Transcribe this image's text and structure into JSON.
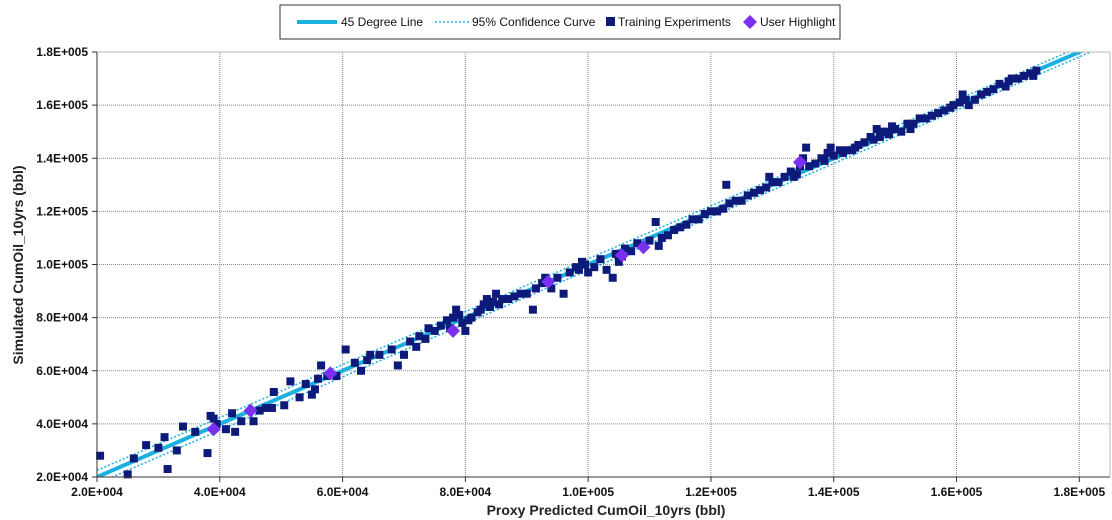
{
  "chart_data": {
    "type": "scatter",
    "xlabel": "Proxy Predicted CumOil_10yrs (bbl)",
    "ylabel": "Simulated CumOil_10yrs (bbl)",
    "xlim": [
      20000,
      185000
    ],
    "ylim": [
      20000,
      180000
    ],
    "x_ticks": [
      20000,
      40000,
      60000,
      80000,
      100000,
      120000,
      140000,
      160000,
      180000
    ],
    "x_tick_labels": [
      "2.0E+004",
      "4.0E+004",
      "6.0E+004",
      "8.0E+004",
      "1.0E+005",
      "1.2E+005",
      "1.4E+005",
      "1.6E+005",
      "1.8E+005"
    ],
    "y_ticks": [
      20000,
      40000,
      60000,
      80000,
      100000,
      120000,
      140000,
      160000,
      180000
    ],
    "y_tick_labels": [
      "2.0E+004",
      "4.0E+004",
      "6.0E+004",
      "8.0E+004",
      "1.0E+005",
      "1.2E+005",
      "1.4E+005",
      "1.6E+005",
      "1.8E+005"
    ],
    "grid": true,
    "legend_position": "top-center",
    "colors": {
      "line": "#1ab0e0",
      "confidence": "#1ab0e0",
      "training": "#0e1a7a",
      "highlight": "#7b2ff0"
    },
    "series": [
      {
        "name": "45 Degree Line",
        "kind": "line",
        "x": [
          20000,
          185000
        ],
        "y": [
          20000,
          185000
        ]
      },
      {
        "name": "95% Confidence Curve",
        "kind": "confidence",
        "x": [
          20000,
          185000
        ],
        "upper": [
          22500,
          186800
        ],
        "lower": [
          17500,
          183200
        ]
      },
      {
        "name": "Training Experiments",
        "kind": "points",
        "points": [
          [
            20500,
            28000
          ],
          [
            25000,
            21000
          ],
          [
            26000,
            27000
          ],
          [
            28000,
            32000
          ],
          [
            30000,
            31000
          ],
          [
            31000,
            35000
          ],
          [
            31500,
            23000
          ],
          [
            33000,
            30000
          ],
          [
            34000,
            39000
          ],
          [
            36000,
            37000
          ],
          [
            38000,
            29000
          ],
          [
            38500,
            43000
          ],
          [
            39000,
            42000
          ],
          [
            39500,
            40000
          ],
          [
            41000,
            38000
          ],
          [
            42000,
            44000
          ],
          [
            42500,
            37000
          ],
          [
            43500,
            41000
          ],
          [
            45500,
            41000
          ],
          [
            46500,
            45000
          ],
          [
            47500,
            46000
          ],
          [
            48500,
            46000
          ],
          [
            48800,
            52000
          ],
          [
            50500,
            47000
          ],
          [
            51500,
            56000
          ],
          [
            53000,
            50000
          ],
          [
            54000,
            55000
          ],
          [
            55000,
            51000
          ],
          [
            55500,
            53000
          ],
          [
            56000,
            57000
          ],
          [
            56500,
            62000
          ],
          [
            57500,
            58000
          ],
          [
            59000,
            58000
          ],
          [
            60500,
            68000
          ],
          [
            62000,
            63000
          ],
          [
            63000,
            60000
          ],
          [
            64000,
            64000
          ],
          [
            64500,
            66000
          ],
          [
            66000,
            66000
          ],
          [
            68000,
            68000
          ],
          [
            69000,
            62000
          ],
          [
            70000,
            66000
          ],
          [
            71000,
            71000
          ],
          [
            72000,
            69000
          ],
          [
            72500,
            73000
          ],
          [
            73500,
            72000
          ],
          [
            74000,
            76000
          ],
          [
            75000,
            75000
          ],
          [
            76000,
            77000
          ],
          [
            77000,
            79000
          ],
          [
            77500,
            76000
          ],
          [
            78000,
            80000
          ],
          [
            78500,
            83000
          ],
          [
            79000,
            81000
          ],
          [
            79500,
            78000
          ],
          [
            80000,
            75000
          ],
          [
            80500,
            79000
          ],
          [
            81000,
            80000
          ],
          [
            82000,
            82000
          ],
          [
            82500,
            83000
          ],
          [
            83000,
            85000
          ],
          [
            83500,
            87000
          ],
          [
            84000,
            84000
          ],
          [
            84500,
            86000
          ],
          [
            85000,
            89000
          ],
          [
            85500,
            85000
          ],
          [
            86000,
            87000
          ],
          [
            87000,
            87000
          ],
          [
            88000,
            88000
          ],
          [
            89000,
            89000
          ],
          [
            90000,
            89000
          ],
          [
            91000,
            83000
          ],
          [
            91500,
            91000
          ],
          [
            92500,
            93000
          ],
          [
            93000,
            95000
          ],
          [
            94000,
            91000
          ],
          [
            95000,
            95000
          ],
          [
            96000,
            89000
          ],
          [
            97000,
            97000
          ],
          [
            98000,
            99000
          ],
          [
            98500,
            98000
          ],
          [
            99000,
            101000
          ],
          [
            99500,
            100000
          ],
          [
            100000,
            97000
          ],
          [
            101000,
            99000
          ],
          [
            102000,
            102000
          ],
          [
            103000,
            98000
          ],
          [
            104000,
            95000
          ],
          [
            104500,
            104000
          ],
          [
            105000,
            101000
          ],
          [
            105500,
            103000
          ],
          [
            106000,
            106000
          ],
          [
            107000,
            105000
          ],
          [
            108000,
            108000
          ],
          [
            109000,
            107000
          ],
          [
            110000,
            109000
          ],
          [
            111000,
            116000
          ],
          [
            111500,
            107000
          ],
          [
            112000,
            110000
          ],
          [
            113000,
            111000
          ],
          [
            114000,
            113000
          ],
          [
            115000,
            114000
          ],
          [
            116000,
            115000
          ],
          [
            117000,
            117000
          ],
          [
            118000,
            117000
          ],
          [
            119000,
            119000
          ],
          [
            120000,
            120000
          ],
          [
            121000,
            120000
          ],
          [
            122000,
            121000
          ],
          [
            122500,
            130000
          ],
          [
            123000,
            123000
          ],
          [
            124000,
            124000
          ],
          [
            125000,
            124000
          ],
          [
            126000,
            126000
          ],
          [
            127000,
            127000
          ],
          [
            128000,
            128000
          ],
          [
            129000,
            129000
          ],
          [
            129500,
            133000
          ],
          [
            130000,
            131000
          ],
          [
            131000,
            131000
          ],
          [
            132000,
            133000
          ],
          [
            133000,
            135000
          ],
          [
            133500,
            133000
          ],
          [
            134000,
            134000
          ],
          [
            134500,
            137000
          ],
          [
            135000,
            140000
          ],
          [
            135500,
            144000
          ],
          [
            136000,
            137000
          ],
          [
            137000,
            138000
          ],
          [
            138000,
            140000
          ],
          [
            138500,
            139000
          ],
          [
            139000,
            142000
          ],
          [
            139500,
            144000
          ],
          [
            140000,
            141000
          ],
          [
            141000,
            143000
          ],
          [
            141500,
            142000
          ],
          [
            142000,
            143000
          ],
          [
            143000,
            143000
          ],
          [
            143500,
            144000
          ],
          [
            144000,
            145000
          ],
          [
            145000,
            146000
          ],
          [
            146000,
            148000
          ],
          [
            146500,
            147000
          ],
          [
            147000,
            151000
          ],
          [
            147500,
            148000
          ],
          [
            148000,
            150000
          ],
          [
            148500,
            150000
          ],
          [
            149000,
            149000
          ],
          [
            149500,
            152000
          ],
          [
            150000,
            151000
          ],
          [
            151000,
            150000
          ],
          [
            152000,
            153000
          ],
          [
            152500,
            151000
          ],
          [
            153000,
            153000
          ],
          [
            154000,
            155000
          ],
          [
            155000,
            155000
          ],
          [
            156000,
            156000
          ],
          [
            157000,
            157000
          ],
          [
            158000,
            158000
          ],
          [
            159000,
            159000
          ],
          [
            159500,
            160000
          ],
          [
            160500,
            161000
          ],
          [
            161000,
            164000
          ],
          [
            161500,
            162000
          ],
          [
            162000,
            160000
          ],
          [
            163000,
            162000
          ],
          [
            164000,
            164000
          ],
          [
            165000,
            165000
          ],
          [
            166000,
            166000
          ],
          [
            167000,
            168000
          ],
          [
            168000,
            167000
          ],
          [
            168500,
            169000
          ],
          [
            169000,
            170000
          ],
          [
            170000,
            170000
          ],
          [
            171000,
            171000
          ],
          [
            172000,
            172000
          ],
          [
            172500,
            171000
          ],
          [
            173000,
            173000
          ]
        ]
      },
      {
        "name": "User Highlight",
        "kind": "highlight",
        "points": [
          [
            39000,
            38000
          ],
          [
            45000,
            45000
          ],
          [
            58000,
            59000
          ],
          [
            78000,
            75000
          ],
          [
            93500,
            93500
          ],
          [
            105500,
            103500
          ],
          [
            109000,
            106500
          ],
          [
            134500,
            138500
          ]
        ]
      }
    ]
  }
}
